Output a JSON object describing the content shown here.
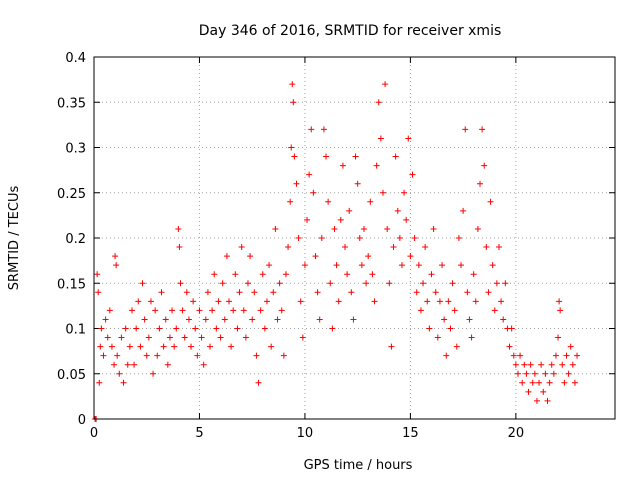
{
  "chart_data": {
    "type": "scatter",
    "title": "Day 346 of 2016, SRMTID for receiver xmis",
    "xlabel": "GPS time / hours",
    "ylabel": "SRMTID / TECUs",
    "xlim": [
      0,
      24.7
    ],
    "ylim": [
      0,
      0.4
    ],
    "xticks": [
      0,
      5,
      10,
      15,
      20
    ],
    "xtick_labels": [
      "0",
      "5",
      "10",
      "15",
      "20"
    ],
    "yticks": [
      0,
      0.05,
      0.1,
      0.15,
      0.2,
      0.25,
      0.3,
      0.35,
      0.4
    ],
    "ytick_labels": [
      "0",
      "0.05",
      "0.1",
      "0.15",
      "0.2",
      "0.25",
      "0.3",
      "0.35",
      "0.4"
    ],
    "grid": true,
    "marker": "+",
    "color": "#ff0000",
    "series": [
      {
        "name": "SRMTID",
        "points": [
          [
            0.05,
            0.0
          ],
          [
            0.1,
            0.0
          ],
          [
            0.15,
            0.16
          ],
          [
            0.2,
            0.14
          ],
          [
            0.25,
            0.04
          ],
          [
            0.3,
            0.08
          ],
          [
            0.35,
            0.1
          ],
          [
            0.45,
            0.07
          ],
          [
            0.55,
            0.11
          ],
          [
            0.65,
            0.09
          ],
          [
            0.75,
            0.12
          ],
          [
            0.85,
            0.08
          ],
          [
            0.95,
            0.06
          ],
          [
            1.0,
            0.18
          ],
          [
            1.05,
            0.17
          ],
          [
            1.1,
            0.07
          ],
          [
            1.2,
            0.05
          ],
          [
            1.3,
            0.09
          ],
          [
            1.4,
            0.04
          ],
          [
            1.5,
            0.1
          ],
          [
            1.6,
            0.06
          ],
          [
            1.7,
            0.08
          ],
          [
            1.8,
            0.12
          ],
          [
            1.9,
            0.06
          ],
          [
            2.0,
            0.1
          ],
          [
            2.1,
            0.13
          ],
          [
            2.2,
            0.08
          ],
          [
            2.3,
            0.15
          ],
          [
            2.4,
            0.11
          ],
          [
            2.5,
            0.07
          ],
          [
            2.6,
            0.09
          ],
          [
            2.7,
            0.13
          ],
          [
            2.8,
            0.05
          ],
          [
            2.9,
            0.12
          ],
          [
            3.0,
            0.07
          ],
          [
            3.1,
            0.1
          ],
          [
            3.2,
            0.14
          ],
          [
            3.3,
            0.08
          ],
          [
            3.4,
            0.11
          ],
          [
            3.5,
            0.06
          ],
          [
            3.6,
            0.09
          ],
          [
            3.7,
            0.12
          ],
          [
            3.8,
            0.08
          ],
          [
            3.9,
            0.1
          ],
          [
            4.0,
            0.21
          ],
          [
            4.05,
            0.19
          ],
          [
            4.1,
            0.15
          ],
          [
            4.2,
            0.12
          ],
          [
            4.3,
            0.09
          ],
          [
            4.4,
            0.14
          ],
          [
            4.5,
            0.11
          ],
          [
            4.6,
            0.08
          ],
          [
            4.7,
            0.13
          ],
          [
            4.8,
            0.1
          ],
          [
            4.9,
            0.07
          ],
          [
            5.0,
            0.12
          ],
          [
            5.1,
            0.09
          ],
          [
            5.2,
            0.06
          ],
          [
            5.3,
            0.11
          ],
          [
            5.4,
            0.14
          ],
          [
            5.5,
            0.08
          ],
          [
            5.6,
            0.12
          ],
          [
            5.7,
            0.16
          ],
          [
            5.8,
            0.1
          ],
          [
            5.9,
            0.13
          ],
          [
            6.0,
            0.09
          ],
          [
            6.1,
            0.15
          ],
          [
            6.2,
            0.11
          ],
          [
            6.3,
            0.18
          ],
          [
            6.4,
            0.13
          ],
          [
            6.5,
            0.08
          ],
          [
            6.6,
            0.12
          ],
          [
            6.7,
            0.16
          ],
          [
            6.8,
            0.1
          ],
          [
            6.9,
            0.14
          ],
          [
            7.0,
            0.19
          ],
          [
            7.1,
            0.12
          ],
          [
            7.2,
            0.09
          ],
          [
            7.3,
            0.15
          ],
          [
            7.4,
            0.18
          ],
          [
            7.5,
            0.11
          ],
          [
            7.6,
            0.14
          ],
          [
            7.7,
            0.07
          ],
          [
            7.8,
            0.04
          ],
          [
            7.9,
            0.12
          ],
          [
            8.0,
            0.16
          ],
          [
            8.1,
            0.1
          ],
          [
            8.2,
            0.13
          ],
          [
            8.3,
            0.17
          ],
          [
            8.4,
            0.08
          ],
          [
            8.5,
            0.14
          ],
          [
            8.6,
            0.21
          ],
          [
            8.7,
            0.11
          ],
          [
            8.8,
            0.15
          ],
          [
            8.9,
            0.12
          ],
          [
            9.0,
            0.07
          ],
          [
            9.1,
            0.16
          ],
          [
            9.2,
            0.19
          ],
          [
            9.3,
            0.24
          ],
          [
            9.35,
            0.3
          ],
          [
            9.4,
            0.37
          ],
          [
            9.45,
            0.35
          ],
          [
            9.5,
            0.29
          ],
          [
            9.6,
            0.26
          ],
          [
            9.7,
            0.2
          ],
          [
            9.8,
            0.13
          ],
          [
            9.9,
            0.09
          ],
          [
            10.0,
            0.17
          ],
          [
            10.1,
            0.22
          ],
          [
            10.2,
            0.27
          ],
          [
            10.3,
            0.32
          ],
          [
            10.4,
            0.25
          ],
          [
            10.5,
            0.18
          ],
          [
            10.6,
            0.14
          ],
          [
            10.7,
            0.11
          ],
          [
            10.8,
            0.2
          ],
          [
            10.9,
            0.32
          ],
          [
            11.0,
            0.29
          ],
          [
            11.1,
            0.24
          ],
          [
            11.2,
            0.15
          ],
          [
            11.3,
            0.1
          ],
          [
            11.4,
            0.21
          ],
          [
            11.5,
            0.17
          ],
          [
            11.6,
            0.13
          ],
          [
            11.7,
            0.22
          ],
          [
            11.8,
            0.28
          ],
          [
            11.9,
            0.19
          ],
          [
            12.0,
            0.16
          ],
          [
            12.1,
            0.23
          ],
          [
            12.2,
            0.14
          ],
          [
            12.3,
            0.11
          ],
          [
            12.4,
            0.29
          ],
          [
            12.5,
            0.26
          ],
          [
            12.6,
            0.2
          ],
          [
            12.7,
            0.17
          ],
          [
            12.8,
            0.21
          ],
          [
            12.9,
            0.15
          ],
          [
            13.0,
            0.18
          ],
          [
            13.1,
            0.24
          ],
          [
            13.2,
            0.16
          ],
          [
            13.3,
            0.13
          ],
          [
            13.4,
            0.28
          ],
          [
            13.5,
            0.35
          ],
          [
            13.6,
            0.31
          ],
          [
            13.7,
            0.25
          ],
          [
            13.8,
            0.37
          ],
          [
            13.9,
            0.21
          ],
          [
            14.0,
            0.15
          ],
          [
            14.1,
            0.08
          ],
          [
            14.2,
            0.19
          ],
          [
            14.3,
            0.29
          ],
          [
            14.4,
            0.23
          ],
          [
            14.5,
            0.2
          ],
          [
            14.6,
            0.17
          ],
          [
            14.7,
            0.25
          ],
          [
            14.8,
            0.22
          ],
          [
            14.9,
            0.31
          ],
          [
            15.0,
            0.18
          ],
          [
            15.1,
            0.27
          ],
          [
            15.2,
            0.2
          ],
          [
            15.3,
            0.14
          ],
          [
            15.4,
            0.17
          ],
          [
            15.5,
            0.12
          ],
          [
            15.6,
            0.15
          ],
          [
            15.7,
            0.19
          ],
          [
            15.8,
            0.13
          ],
          [
            15.9,
            0.1
          ],
          [
            16.0,
            0.16
          ],
          [
            16.1,
            0.21
          ],
          [
            16.2,
            0.14
          ],
          [
            16.3,
            0.09
          ],
          [
            16.4,
            0.13
          ],
          [
            16.5,
            0.17
          ],
          [
            16.6,
            0.11
          ],
          [
            16.7,
            0.07
          ],
          [
            16.8,
            0.13
          ],
          [
            16.9,
            0.1
          ],
          [
            17.0,
            0.15
          ],
          [
            17.1,
            0.12
          ],
          [
            17.2,
            0.08
          ],
          [
            17.3,
            0.2
          ],
          [
            17.4,
            0.17
          ],
          [
            17.5,
            0.23
          ],
          [
            17.6,
            0.32
          ],
          [
            17.7,
            0.14
          ],
          [
            17.8,
            0.11
          ],
          [
            17.9,
            0.09
          ],
          [
            18.0,
            0.16
          ],
          [
            18.1,
            0.13
          ],
          [
            18.2,
            0.21
          ],
          [
            18.3,
            0.26
          ],
          [
            18.4,
            0.32
          ],
          [
            18.5,
            0.28
          ],
          [
            18.6,
            0.19
          ],
          [
            18.7,
            0.14
          ],
          [
            18.8,
            0.24
          ],
          [
            18.9,
            0.17
          ],
          [
            19.0,
            0.12
          ],
          [
            19.1,
            0.15
          ],
          [
            19.2,
            0.19
          ],
          [
            19.3,
            0.13
          ],
          [
            19.4,
            0.11
          ],
          [
            19.5,
            0.15
          ],
          [
            19.6,
            0.1
          ],
          [
            19.7,
            0.08
          ],
          [
            19.8,
            0.1
          ],
          [
            19.9,
            0.07
          ],
          [
            20.0,
            0.06
          ],
          [
            20.1,
            0.05
          ],
          [
            20.2,
            0.07
          ],
          [
            20.3,
            0.04
          ],
          [
            20.4,
            0.06
          ],
          [
            20.5,
            0.05
          ],
          [
            20.6,
            0.03
          ],
          [
            20.7,
            0.06
          ],
          [
            20.8,
            0.04
          ],
          [
            20.9,
            0.05
          ],
          [
            21.0,
            0.02
          ],
          [
            21.1,
            0.04
          ],
          [
            21.2,
            0.06
          ],
          [
            21.3,
            0.03
          ],
          [
            21.4,
            0.05
          ],
          [
            21.5,
            0.02
          ],
          [
            21.6,
            0.04
          ],
          [
            21.7,
            0.06
          ],
          [
            21.8,
            0.05
          ],
          [
            21.9,
            0.07
          ],
          [
            22.0,
            0.09
          ],
          [
            22.05,
            0.13
          ],
          [
            22.1,
            0.12
          ],
          [
            22.2,
            0.06
          ],
          [
            22.3,
            0.04
          ],
          [
            22.4,
            0.07
          ],
          [
            22.5,
            0.05
          ],
          [
            22.6,
            0.08
          ],
          [
            22.7,
            0.06
          ],
          [
            22.8,
            0.04
          ],
          [
            22.9,
            0.07
          ]
        ]
      }
    ]
  }
}
